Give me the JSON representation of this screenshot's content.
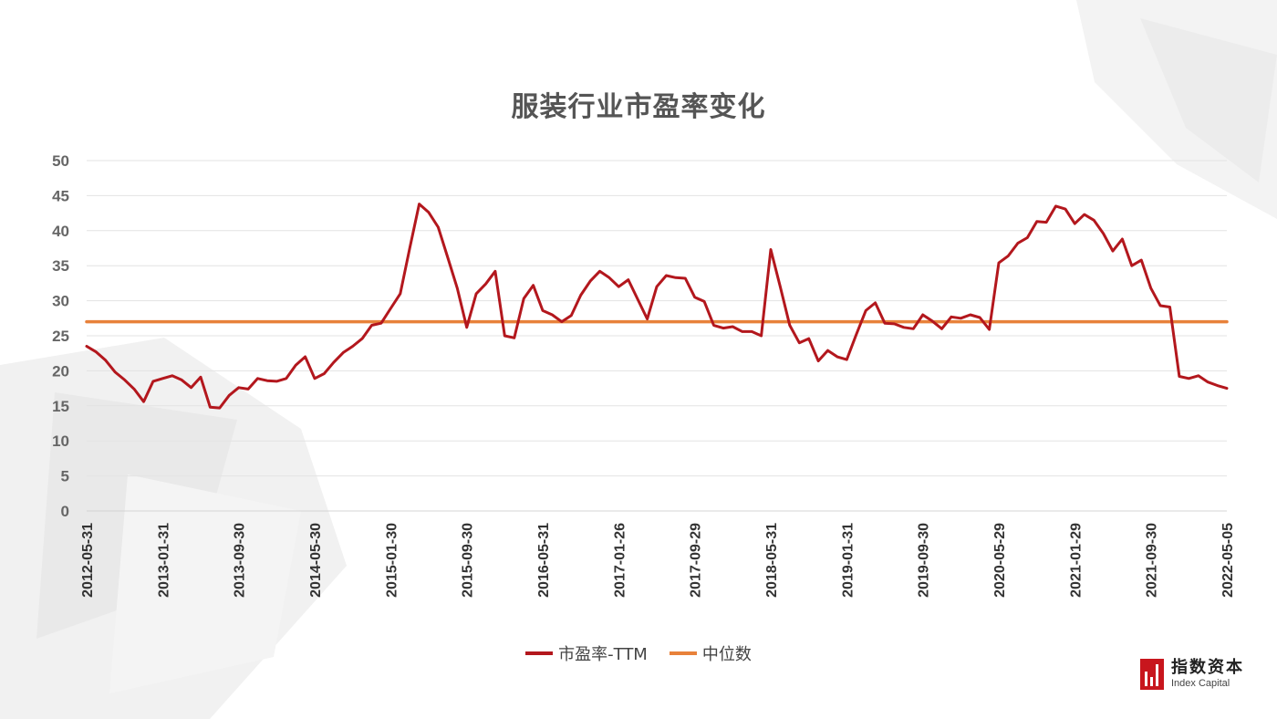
{
  "chart_data": {
    "type": "line",
    "title": "服装行业市盈率变化",
    "ylim": [
      0,
      50
    ],
    "yticks": [
      0,
      5,
      10,
      15,
      20,
      25,
      30,
      35,
      40,
      45,
      50
    ],
    "x_tick_labels": [
      "2012-05-31",
      "2013-01-31",
      "2013-09-30",
      "2014-05-30",
      "2015-01-30",
      "2015-09-30",
      "2016-05-31",
      "2017-01-26",
      "2017-09-29",
      "2018-05-31",
      "2019-01-31",
      "2019-09-30",
      "2020-05-29",
      "2021-01-29",
      "2021-09-30",
      "2022-05-05"
    ],
    "grid": true,
    "legend_position": "bottom",
    "series": [
      {
        "name": "市盈率-TTM",
        "color": "#b3171d",
        "values": [
          23.5,
          22.7,
          21.5,
          19.8,
          18.7,
          17.4,
          15.6,
          18.5,
          18.9,
          19.3,
          18.7,
          17.6,
          19.1,
          14.8,
          14.7,
          16.5,
          17.6,
          17.4,
          18.9,
          18.6,
          18.5,
          18.9,
          20.8,
          22.0,
          18.9,
          19.6,
          21.2,
          22.6,
          23.5,
          24.6,
          26.5,
          26.8,
          28.9,
          31.0,
          37.5,
          43.8,
          42.6,
          40.5,
          36.2,
          31.8,
          26.2,
          31.0,
          32.4,
          34.2,
          25.0,
          24.7,
          30.3,
          32.2,
          28.6,
          28.0,
          27.0,
          27.9,
          30.8,
          32.8,
          34.2,
          33.3,
          32.0,
          33.0,
          30.2,
          27.4,
          32.0,
          33.6,
          33.3,
          33.2,
          30.5,
          29.9,
          26.5,
          26.1,
          26.3,
          25.6,
          25.6,
          25.0,
          37.3,
          32.0,
          26.5,
          24.0,
          24.6,
          21.4,
          22.9,
          22.0,
          21.6,
          25.2,
          28.6,
          29.7,
          26.8,
          26.7,
          26.2,
          26.0,
          28.0,
          27.1,
          26.0,
          27.7,
          27.5,
          28.0,
          27.6,
          25.9,
          35.4,
          36.4,
          38.2,
          39.0,
          41.3,
          41.2,
          43.5,
          43.1,
          41.0,
          42.3,
          41.5,
          39.6,
          37.1,
          38.8,
          35.0,
          35.8,
          31.8,
          29.3,
          29.1,
          19.2,
          18.9,
          19.3,
          18.4,
          17.9,
          17.5
        ]
      },
      {
        "name": "中位数",
        "color": "#e8813a",
        "values": [
          27.0,
          27.0
        ]
      }
    ]
  },
  "logo": {
    "cn": "指数资本",
    "en": "Index Capital"
  }
}
